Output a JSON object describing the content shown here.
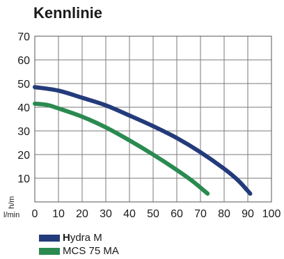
{
  "chart_data": {
    "type": "line",
    "title": "Kennlinie",
    "ylabel": "h/m",
    "xlabel": "l/min",
    "xlim": [
      0,
      100
    ],
    "ylim": [
      0,
      70
    ],
    "x_ticks": [
      0,
      10,
      20,
      30,
      40,
      50,
      60,
      70,
      80,
      90,
      100
    ],
    "y_ticks": [
      10,
      20,
      30,
      40,
      50,
      60,
      70
    ],
    "grid": true,
    "legend_position": "bottom-left",
    "series": [
      {
        "name": "Hydra M",
        "name_bold": "H",
        "name_rest": "ydra M",
        "color": "#233b7a",
        "points": [
          [
            0,
            48.5
          ],
          [
            10,
            47
          ],
          [
            20,
            44
          ],
          [
            30,
            40.8
          ],
          [
            40,
            36.5
          ],
          [
            50,
            32
          ],
          [
            60,
            27
          ],
          [
            70,
            21
          ],
          [
            80,
            14
          ],
          [
            86,
            9
          ],
          [
            91,
            3.5
          ]
        ]
      },
      {
        "name": "MCS 75 MA",
        "color": "#2a8a50",
        "points": [
          [
            0,
            41.5
          ],
          [
            5,
            41
          ],
          [
            10,
            39.5
          ],
          [
            20,
            36
          ],
          [
            30,
            31.5
          ],
          [
            40,
            26
          ],
          [
            50,
            20
          ],
          [
            60,
            13.5
          ],
          [
            67,
            8.5
          ],
          [
            73,
            3.5
          ]
        ]
      }
    ]
  }
}
